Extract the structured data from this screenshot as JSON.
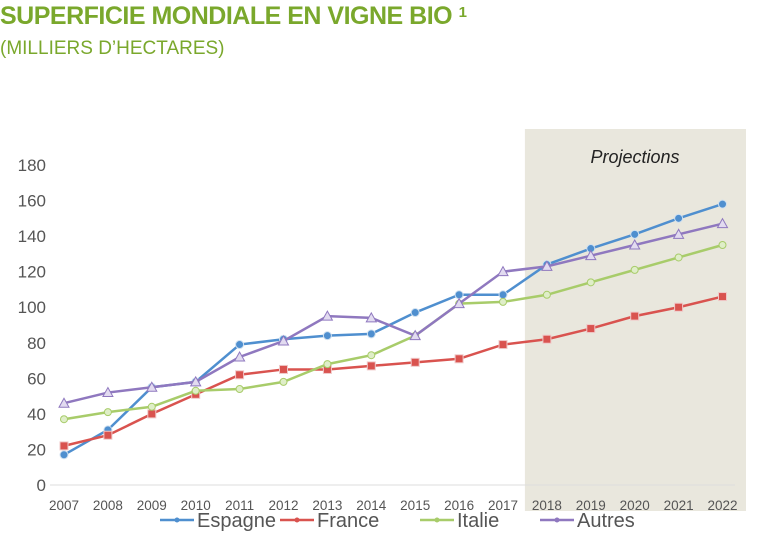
{
  "title": "SUPERFICIE MONDIALE EN VIGNE BIO",
  "title_sup": "1",
  "subtitle": "(MILLIERS D’HECTARES)",
  "chart_data": {
    "type": "line",
    "categories": [
      "2007",
      "2008",
      "2009",
      "2010",
      "2011",
      "2012",
      "2013",
      "2014",
      "2015",
      "2016",
      "2017",
      "2018",
      "2019",
      "2020",
      "2021",
      "2022"
    ],
    "ylim": [
      0,
      180
    ],
    "yticks": [
      0,
      20,
      40,
      60,
      80,
      100,
      120,
      140,
      160,
      180
    ],
    "grid": false,
    "legend": "bottom",
    "annotation": "Projections",
    "projection_from": "2018",
    "series": [
      {
        "name": "Espagne",
        "color": "#4f8fcf",
        "marker": "circle",
        "values": [
          17,
          31,
          55,
          58,
          79,
          82,
          84,
          85,
          97,
          107,
          107,
          124,
          133,
          141,
          150,
          158
        ]
      },
      {
        "name": "France",
        "color": "#d9534f",
        "marker": "square",
        "values": [
          22,
          28,
          40,
          51,
          62,
          65,
          65,
          67,
          69,
          71,
          79,
          82,
          88,
          95,
          100,
          106
        ]
      },
      {
        "name": "Italie",
        "color": "#a8cc6a",
        "marker": "diamond",
        "values": [
          37,
          41,
          44,
          53,
          54,
          58,
          68,
          73,
          84,
          102,
          103,
          107,
          114,
          121,
          128,
          135
        ]
      },
      {
        "name": "Autres",
        "color": "#8f78bf",
        "marker": "triangle",
        "values": [
          46,
          52,
          55,
          58,
          72,
          81,
          95,
          94,
          84,
          102,
          120,
          123,
          129,
          135,
          141,
          147
        ]
      }
    ]
  }
}
